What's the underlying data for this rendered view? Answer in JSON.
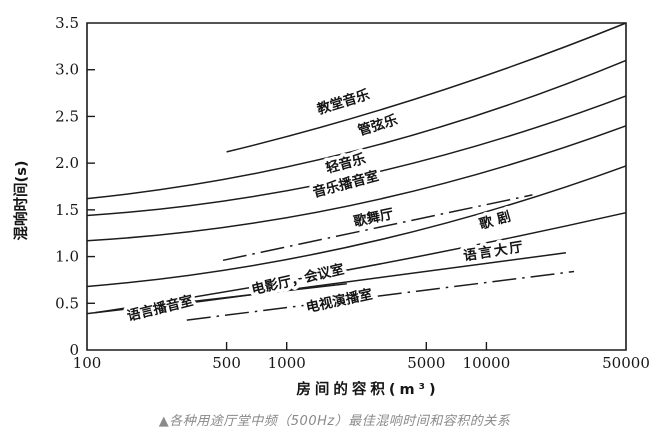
{
  "caption": {
    "marker": "▲",
    "text": "各种用途厅堂中频（500Hz）最佳混响时间和容积的关系"
  },
  "colors": {
    "line": "#1c1c1c",
    "caption_gray": "#8a8a8a",
    "background": "#ffffff"
  },
  "chart_data": {
    "type": "line",
    "title": "",
    "xlabel": "房间的容积(m³)",
    "ylabel": "混响时间(s)",
    "x_scale": "log",
    "grid": false,
    "legend_position": "labels-on-lines",
    "xlim": [
      100,
      50000
    ],
    "ylim": [
      0,
      3.5
    ],
    "x_ticks": [
      100,
      500,
      1000,
      5000,
      10000,
      50000
    ],
    "x_tick_labels": [
      "100",
      "500",
      "1000",
      "5000",
      "10000",
      "50000"
    ],
    "y_ticks": [
      0,
      0.5,
      1.0,
      1.5,
      2.0,
      2.5,
      3.0,
      3.5
    ],
    "y_tick_labels": [
      "0",
      "0.5",
      "1.0",
      "1.5",
      "2.0",
      "2.5",
      "3.0",
      "3.5"
    ],
    "series": [
      {
        "id": "church-music",
        "name": "教堂音乐",
        "style": "solid",
        "sag": 8,
        "points": [
          [
            500,
            2.12
          ],
          [
            50000,
            3.5
          ]
        ],
        "label_at": [
          1950,
          2.61
        ],
        "label_rotation": -17
      },
      {
        "id": "orchestra",
        "name": "管弦乐",
        "style": "solid",
        "sag": 21,
        "points": [
          [
            100,
            1.62
          ],
          [
            50000,
            3.1
          ]
        ],
        "label_at": [
          2900,
          2.36
        ],
        "label_rotation": -17
      },
      {
        "id": "light-music",
        "name": "轻音乐",
        "style": "solid",
        "sag": 21,
        "points": [
          [
            100,
            1.44
          ],
          [
            50000,
            2.72
          ]
        ],
        "label_at": [
          2000,
          1.95
        ],
        "label_rotation": -15
      },
      {
        "id": "music-broadcast-studio",
        "name": "音乐播音室",
        "style": "solid",
        "sag": 21,
        "points": [
          [
            100,
            1.17
          ],
          [
            50000,
            2.4
          ]
        ],
        "label_at": [
          2000,
          1.73
        ],
        "label_rotation": -15
      },
      {
        "id": "dance-hall",
        "name": "歌舞厅",
        "style": "dashdot",
        "sag": 0,
        "points": [
          [
            480,
            0.96
          ],
          [
            17000,
            1.66
          ]
        ],
        "label_at": [
          2750,
          1.37
        ],
        "label_rotation": -12
      },
      {
        "id": "opera",
        "name": "歌剧",
        "style": "solid",
        "sag": 19,
        "points": [
          [
            100,
            0.68
          ],
          [
            50000,
            1.97
          ]
        ],
        "label_at": [
          11500,
          1.35
        ],
        "label_rotation": -16,
        "spacing": 5
      },
      {
        "id": "speech-hall",
        "name": "语言大厅",
        "style": "solid",
        "sag": 5,
        "points": [
          [
            110,
            0.4
          ],
          [
            50000,
            1.47
          ]
        ],
        "label_at": [
          11000,
          1.01
        ],
        "label_rotation": -9,
        "spacing": 2
      },
      {
        "id": "cinema-conference-room",
        "name": "电影厅，会议室",
        "style": "solid",
        "sag": 0,
        "points": [
          [
            316,
            0.5
          ],
          [
            25000,
            1.04
          ]
        ],
        "label_at": [
          1150,
          0.71
        ],
        "label_rotation": -13
      },
      {
        "id": "speech-broadcast-studio",
        "name": "语言播音室",
        "style": "solid",
        "sag": 0,
        "points": [
          [
            100,
            0.39
          ],
          [
            2000,
            0.71
          ]
        ],
        "label_at": [
          235,
          0.4
        ],
        "label_rotation": -14
      },
      {
        "id": "tv-studio",
        "name": "电视演播室",
        "style": "dashdot",
        "sag": 0,
        "points": [
          [
            316,
            0.32
          ],
          [
            27500,
            0.84
          ]
        ],
        "label_at": [
          1850,
          0.48
        ],
        "label_rotation": -12
      }
    ]
  }
}
